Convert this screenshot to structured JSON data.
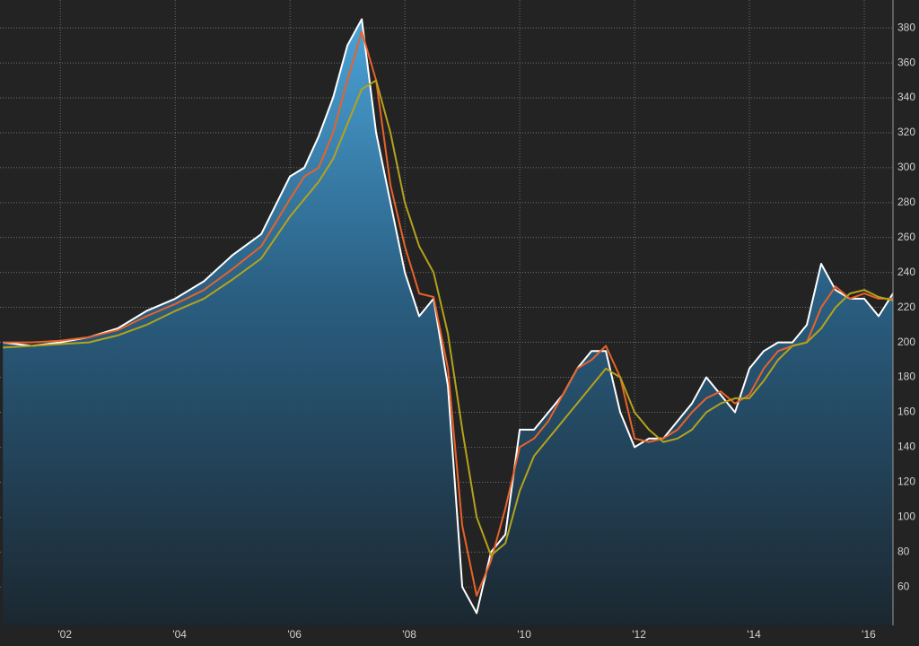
{
  "chart_data": {
    "type": "line",
    "x": [
      2001,
      2001.5,
      2002,
      2002.5,
      2003,
      2003.5,
      2004,
      2004.5,
      2005,
      2005.5,
      2006,
      2006.25,
      2006.5,
      2006.75,
      2007,
      2007.25,
      2007.5,
      2007.75,
      2008,
      2008.25,
      2008.5,
      2008.75,
      2009,
      2009.25,
      2009.5,
      2009.75,
      2010,
      2010.25,
      2010.5,
      2010.75,
      2011,
      2011.25,
      2011.5,
      2011.75,
      2012,
      2012.25,
      2012.5,
      2012.75,
      2013,
      2013.25,
      2013.5,
      2013.75,
      2014,
      2014.25,
      2014.5,
      2014.75,
      2015,
      2015.25,
      2015.5,
      2015.75,
      2016,
      2016.25,
      2016.5
    ],
    "series": [
      {
        "color": "#ffffff",
        "area": true,
        "values": [
          200,
          198,
          200,
          203,
          208,
          218,
          225,
          235,
          250,
          262,
          295,
          300,
          318,
          340,
          370,
          385,
          320,
          280,
          240,
          215,
          225,
          175,
          60,
          45,
          80,
          90,
          150,
          150,
          160,
          170,
          185,
          195,
          195,
          160,
          140,
          145,
          145,
          155,
          165,
          180,
          170,
          160,
          185,
          195,
          200,
          200,
          210,
          245,
          230,
          225,
          225,
          215,
          228
        ]
      },
      {
        "color": "#e8622a",
        "values": [
          200,
          200,
          201,
          203,
          207,
          215,
          222,
          230,
          242,
          255,
          282,
          295,
          300,
          320,
          350,
          378,
          350,
          290,
          255,
          228,
          226,
          185,
          95,
          55,
          75,
          105,
          140,
          145,
          155,
          170,
          185,
          190,
          198,
          180,
          145,
          143,
          145,
          150,
          160,
          168,
          172,
          165,
          170,
          185,
          195,
          198,
          200,
          220,
          232,
          225,
          228,
          225,
          225
        ]
      },
      {
        "color": "#b5a21c",
        "values": [
          197,
          198,
          199,
          200,
          204,
          210,
          218,
          225,
          236,
          248,
          272,
          282,
          292,
          305,
          325,
          345,
          350,
          320,
          280,
          255,
          240,
          205,
          150,
          100,
          78,
          85,
          115,
          135,
          145,
          155,
          165,
          175,
          185,
          180,
          160,
          150,
          143,
          145,
          150,
          160,
          165,
          168,
          168,
          178,
          190,
          198,
          200,
          208,
          220,
          228,
          230,
          226,
          224
        ]
      }
    ],
    "xlim": [
      2000.95,
      2016.5
    ],
    "xticks": [
      {
        "value": 2002,
        "label": "'02"
      },
      {
        "value": 2004,
        "label": "'04"
      },
      {
        "value": 2006,
        "label": "'06"
      },
      {
        "value": 2008,
        "label": "'08"
      },
      {
        "value": 2010,
        "label": "'10"
      },
      {
        "value": 2012,
        "label": "'12"
      },
      {
        "value": 2014,
        "label": "'14"
      },
      {
        "value": 2016,
        "label": "'16"
      }
    ],
    "ylim": [
      38,
      396
    ],
    "yticks": [
      60,
      80,
      100,
      120,
      140,
      160,
      180,
      200,
      220,
      240,
      260,
      280,
      300,
      320,
      340,
      360,
      380
    ],
    "grid": true
  }
}
